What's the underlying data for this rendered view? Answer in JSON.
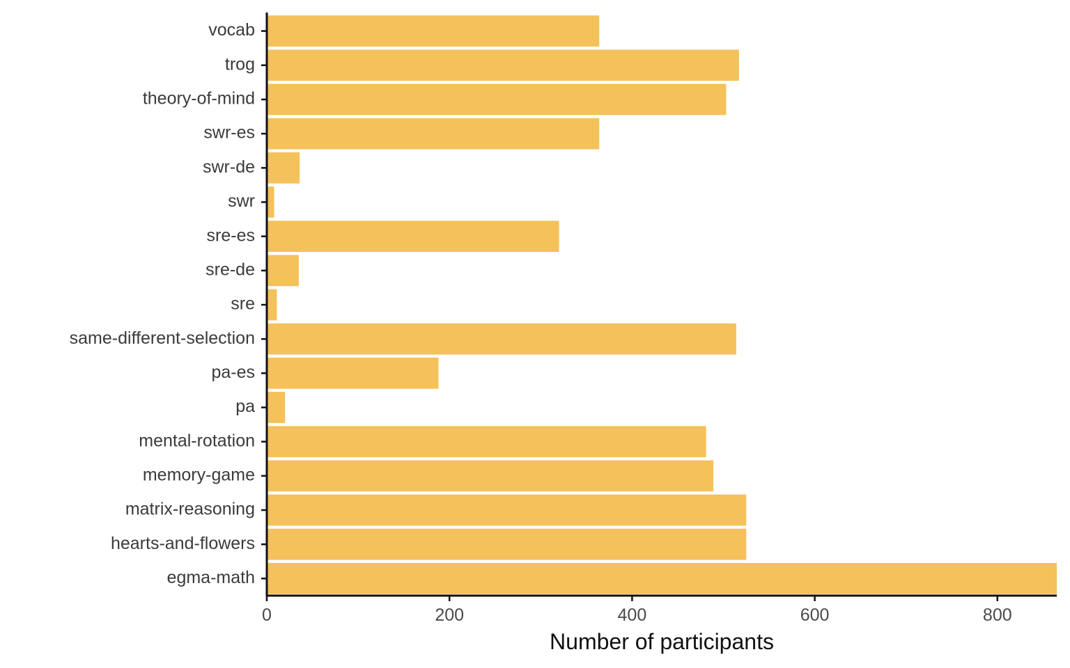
{
  "chart_data": {
    "type": "bar",
    "orientation": "horizontal",
    "xlabel": "Number of participants",
    "ylabel": "",
    "xlim": [
      0,
      865
    ],
    "xticks": [
      0,
      200,
      400,
      600,
      800
    ],
    "grid": false,
    "legend": "none",
    "bar_color": "#F4C15A",
    "categories": [
      "vocab",
      "trog",
      "theory-of-mind",
      "swr-es",
      "swr-de",
      "swr",
      "sre-es",
      "sre-de",
      "sre",
      "same-different-selection",
      "pa-es",
      "pa",
      "mental-rotation",
      "memory-game",
      "matrix-reasoning",
      "hearts-and-flowers",
      "egma-math"
    ],
    "values": [
      364,
      517,
      503,
      364,
      36,
      8,
      320,
      35,
      11,
      514,
      188,
      20,
      481,
      489,
      525,
      525,
      865
    ]
  }
}
